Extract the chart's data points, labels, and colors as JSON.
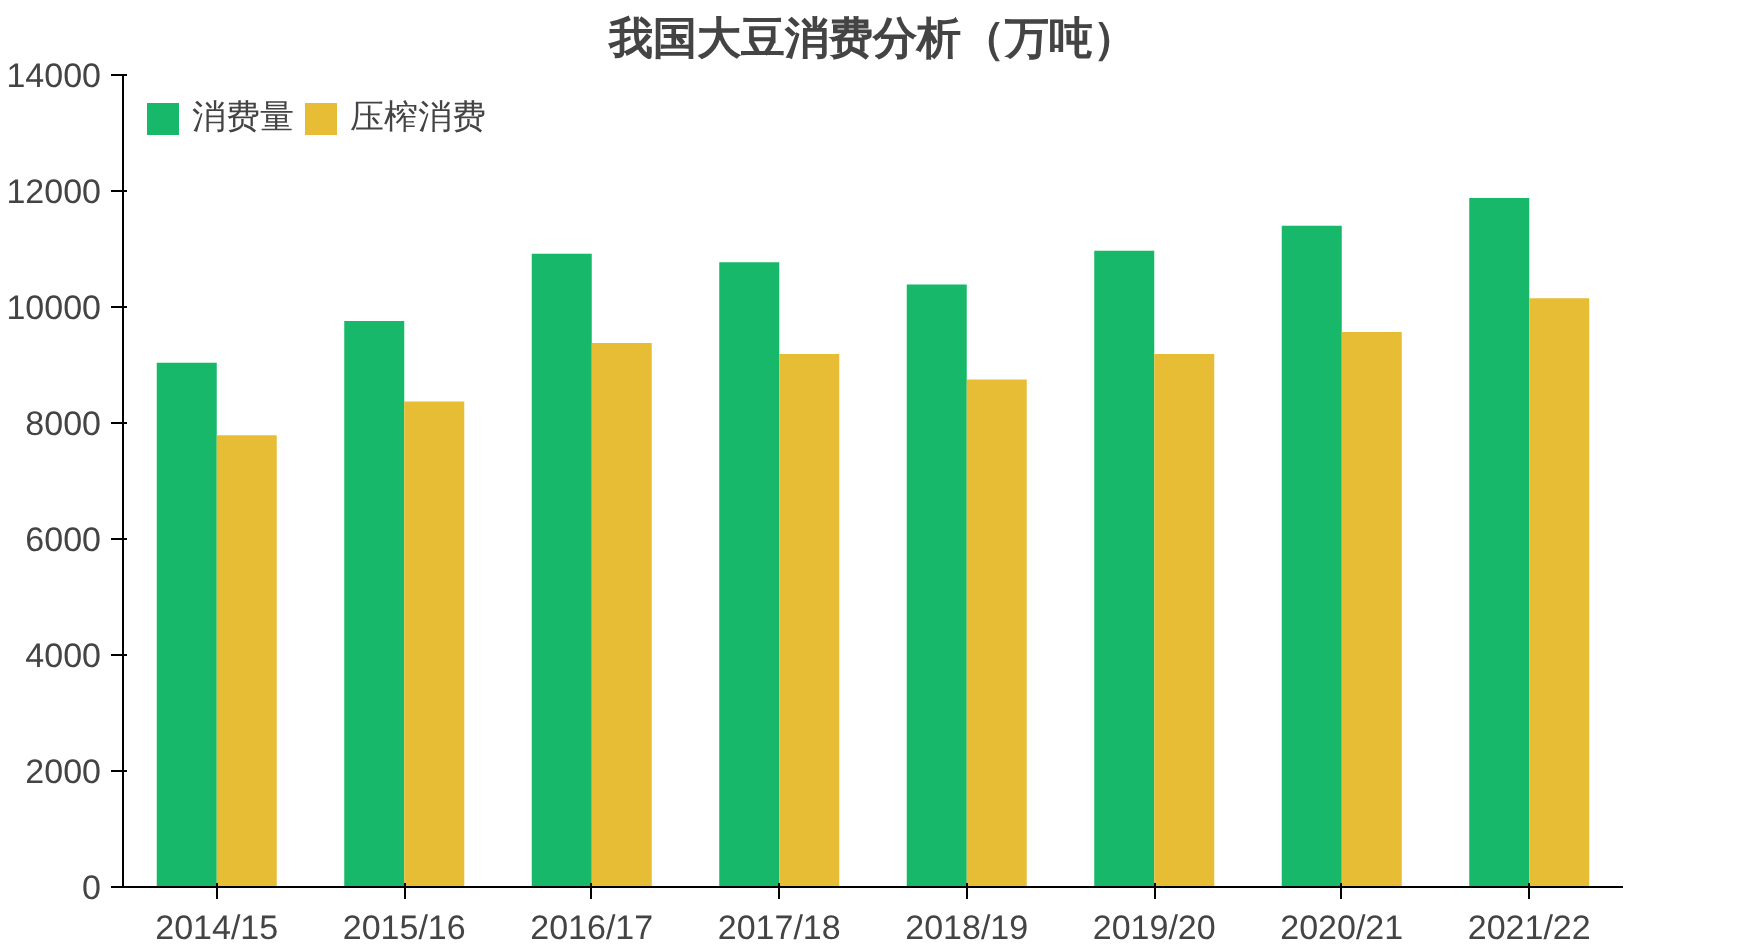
{
  "chart_data": {
    "type": "bar",
    "title": "我国大豆消费分析（万吨）",
    "categories": [
      "2014/15",
      "2015/16",
      "2016/17",
      "2017/18",
      "2018/19",
      "2019/20",
      "2020/21",
      "2021/22"
    ],
    "series": [
      {
        "name": "消费量",
        "color": "#17b86a",
        "values": [
          9040,
          9760,
          10920,
          10770,
          10390,
          10970,
          11400,
          11880
        ]
      },
      {
        "name": "压榨消费",
        "color": "#e6bd35",
        "values": [
          7790,
          8370,
          9380,
          9190,
          8750,
          9190,
          9570,
          10150
        ]
      }
    ],
    "ylim": [
      0,
      14000
    ],
    "yticks": [
      0,
      2000,
      4000,
      6000,
      8000,
      10000,
      12000,
      14000
    ],
    "grid": false,
    "legend": "top left"
  }
}
